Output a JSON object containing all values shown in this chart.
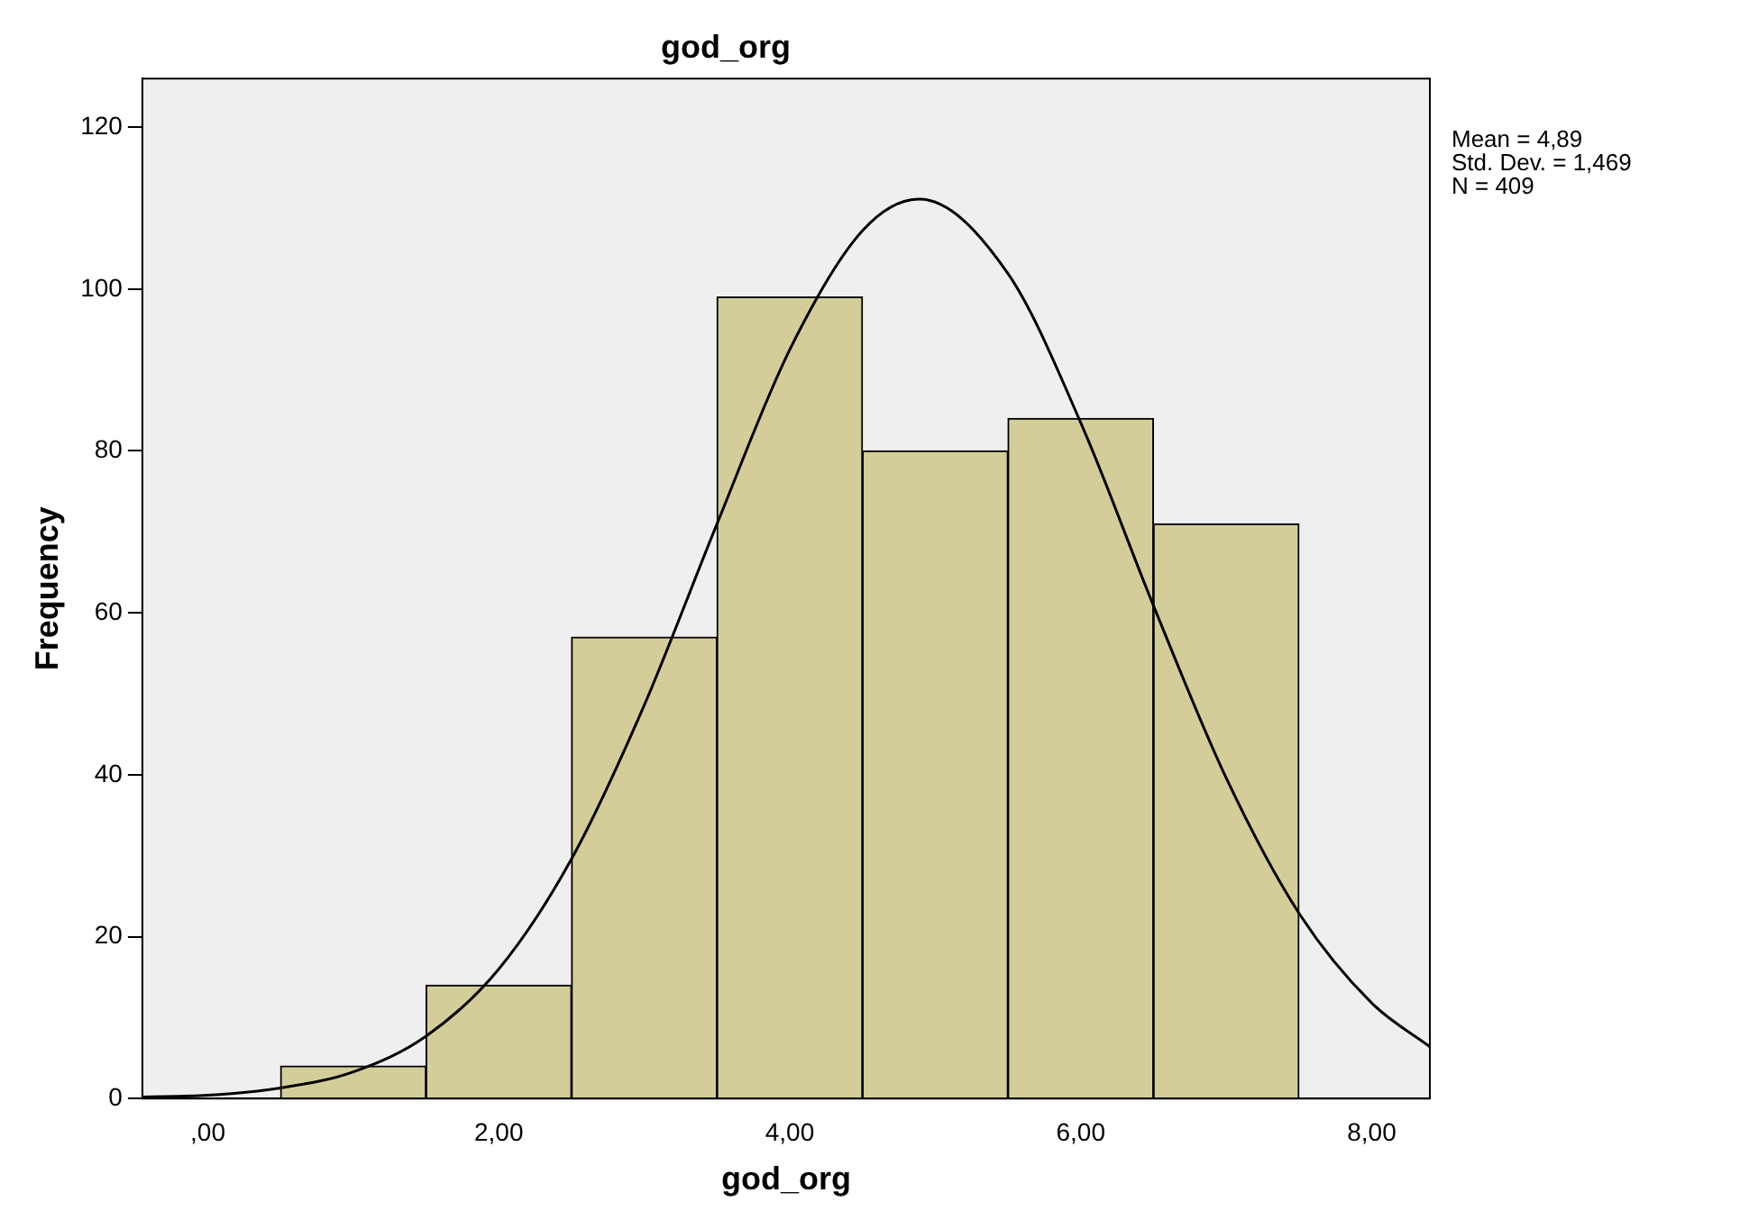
{
  "chart_data": {
    "type": "histogram",
    "title": "god_org",
    "xlabel": "god_org",
    "ylabel": "Frequency",
    "bins": [
      0.5,
      1.5,
      2.5,
      3.5,
      4.5,
      5.5,
      6.5,
      7.5
    ],
    "values": [
      4,
      14,
      57,
      99,
      80,
      84,
      71
    ],
    "color": "#d3ce99",
    "series": [
      {
        "type": "line",
        "x": [
          -0.45,
          0,
          0.5,
          1,
          1.5,
          2,
          2.5,
          3,
          3.5,
          4,
          4.5,
          4.89,
          5.5,
          6,
          6.5,
          7,
          7.5,
          8,
          8.4
        ],
        "values": [
          0.2,
          0.4,
          1.3,
          3.3,
          7.7,
          16,
          29.6,
          48.6,
          71,
          92.5,
          107.2,
          111.1,
          101.9,
          83.5,
          60.9,
          39.6,
          22.9,
          11.8,
          6.4
        ],
        "color": "#000000",
        "marker": "none"
      }
    ],
    "xlim": [
      -0.45,
      8.4
    ],
    "xticks": [
      {
        "value": 0,
        "label": ",00"
      },
      {
        "value": 2,
        "label": "2,00"
      },
      {
        "value": 4,
        "label": "4,00"
      },
      {
        "value": 6,
        "label": "6,00"
      },
      {
        "value": 8,
        "label": "8,00"
      }
    ],
    "ylim": [
      0,
      126
    ],
    "yticks": [
      0,
      20,
      40,
      60,
      80,
      100,
      120
    ],
    "legend": false,
    "grid": false,
    "annotations": [
      "Mean = 4,89",
      "Std. Dev. = 1,469",
      "N = 409"
    ]
  }
}
